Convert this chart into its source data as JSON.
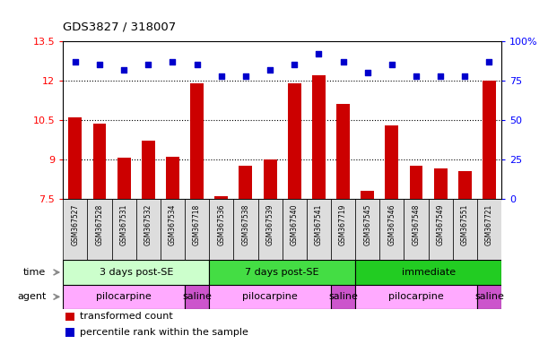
{
  "title": "GDS3827 / 318007",
  "samples": [
    "GSM367527",
    "GSM367528",
    "GSM367531",
    "GSM367532",
    "GSM367534",
    "GSM367718",
    "GSM367536",
    "GSM367538",
    "GSM367539",
    "GSM367540",
    "GSM367541",
    "GSM367719",
    "GSM367545",
    "GSM367546",
    "GSM367548",
    "GSM367549",
    "GSM367551",
    "GSM367721"
  ],
  "bar_values": [
    10.6,
    10.35,
    9.05,
    9.7,
    9.1,
    11.9,
    7.6,
    8.75,
    9.0,
    11.9,
    12.2,
    11.1,
    7.8,
    10.3,
    8.75,
    8.65,
    8.55,
    12.0
  ],
  "dot_values_pct": [
    87,
    85,
    82,
    85,
    87,
    85,
    78,
    78,
    82,
    85,
    92,
    87,
    80,
    85,
    78,
    78,
    78,
    87
  ],
  "ylim_left": [
    7.5,
    13.5
  ],
  "ylim_right": [
    0,
    100
  ],
  "yticks_left": [
    7.5,
    9.0,
    10.5,
    12.0,
    13.5
  ],
  "yticks_right": [
    0,
    25,
    50,
    75,
    100
  ],
  "ytick_labels_left": [
    "7.5",
    "9",
    "10.5",
    "12",
    "13.5"
  ],
  "ytick_labels_right": [
    "0",
    "25",
    "50",
    "75",
    "100%"
  ],
  "bar_color": "#cc0000",
  "dot_color": "#0000cc",
  "hline_values": [
    9.0,
    10.5,
    12.0
  ],
  "time_groups": [
    {
      "label": "3 days post-SE",
      "start": 0,
      "end": 6,
      "color": "#ccffcc"
    },
    {
      "label": "7 days post-SE",
      "start": 6,
      "end": 12,
      "color": "#44dd44"
    },
    {
      "label": "immediate",
      "start": 12,
      "end": 18,
      "color": "#22cc22"
    }
  ],
  "agent_groups": [
    {
      "label": "pilocarpine",
      "start": 0,
      "end": 5,
      "color": "#ffaaff"
    },
    {
      "label": "saline",
      "start": 5,
      "end": 6,
      "color": "#cc55cc"
    },
    {
      "label": "pilocarpine",
      "start": 6,
      "end": 11,
      "color": "#ffaaff"
    },
    {
      "label": "saline",
      "start": 11,
      "end": 12,
      "color": "#cc55cc"
    },
    {
      "label": "pilocarpine",
      "start": 12,
      "end": 17,
      "color": "#ffaaff"
    },
    {
      "label": "saline",
      "start": 17,
      "end": 18,
      "color": "#cc55cc"
    }
  ],
  "sample_bg_color": "#dddddd",
  "legend_bar_label": "transformed count",
  "legend_dot_label": "percentile rank within the sample",
  "time_label": "time",
  "agent_label": "agent",
  "background_color": "#ffffff"
}
